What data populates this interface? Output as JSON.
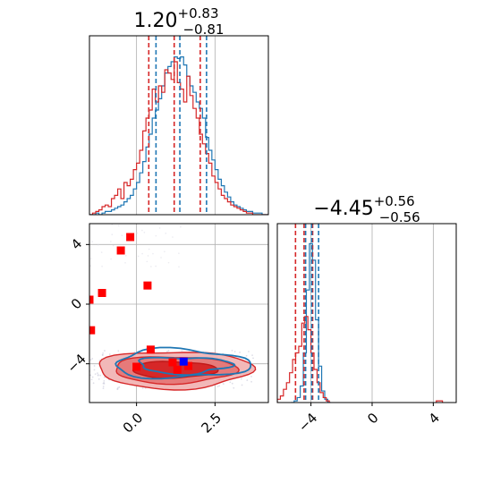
{
  "chart_data": [
    {
      "type": "histogram",
      "panel": "top-left",
      "title_main": "1.20",
      "title_sup": "+0.83",
      "title_sub": "−0.81",
      "xlim": [
        -1.5,
        4.2
      ],
      "grid": true,
      "quantiles_red": [
        0.39,
        1.2,
        2.03
      ],
      "quantiles_blue": [
        0.62,
        1.38,
        2.23
      ],
      "series": [
        {
          "color": "#1f77b4",
          "bin_centers": [
            -1.45,
            -1.35,
            -1.25,
            -1.15,
            -1.05,
            -0.95,
            -0.85,
            -0.75,
            -0.65,
            -0.55,
            -0.45,
            -0.35,
            -0.25,
            -0.15,
            -0.05,
            0.05,
            0.15,
            0.25,
            0.35,
            0.45,
            0.55,
            0.65,
            0.75,
            0.85,
            0.95,
            1.05,
            1.15,
            1.25,
            1.35,
            1.45,
            1.55,
            1.65,
            1.75,
            1.85,
            1.95,
            2.05,
            2.15,
            2.25,
            2.35,
            2.45,
            2.55,
            2.65,
            2.75,
            2.85,
            2.95,
            3.05,
            3.15,
            3.25,
            3.35,
            3.45,
            3.55,
            3.65,
            3.75,
            3.85,
            3.95,
            4.05,
            4.15
          ],
          "heights": [
            0.0,
            0.0,
            0.01,
            0.0,
            0.01,
            0.02,
            0.02,
            0.03,
            0.04,
            0.05,
            0.06,
            0.08,
            0.1,
            0.12,
            0.16,
            0.2,
            0.26,
            0.33,
            0.42,
            0.5,
            0.6,
            0.65,
            0.72,
            0.8,
            0.88,
            0.92,
            0.95,
            0.98,
            0.97,
            0.98,
            0.93,
            0.86,
            0.8,
            0.76,
            0.7,
            0.66,
            0.6,
            0.48,
            0.4,
            0.34,
            0.28,
            0.22,
            0.18,
            0.14,
            0.11,
            0.08,
            0.06,
            0.05,
            0.04,
            0.03,
            0.02,
            0.02,
            0.01,
            0.01,
            0.01,
            0.0,
            0.0
          ]
        },
        {
          "color": "#d62728",
          "bin_centers": [
            -1.45,
            -1.35,
            -1.25,
            -1.15,
            -1.05,
            -0.95,
            -0.85,
            -0.75,
            -0.65,
            -0.55,
            -0.45,
            -0.35,
            -0.25,
            -0.15,
            -0.05,
            0.05,
            0.15,
            0.25,
            0.35,
            0.45,
            0.55,
            0.65,
            0.75,
            0.85,
            0.95,
            1.05,
            1.15,
            1.25,
            1.35,
            1.45,
            1.55,
            1.65,
            1.75,
            1.85,
            1.95,
            2.05,
            2.15,
            2.25,
            2.35,
            2.45,
            2.55,
            2.65,
            2.75,
            2.85,
            2.95,
            3.05,
            3.15,
            3.25,
            3.35,
            3.45,
            3.55,
            3.65,
            3.75,
            3.85,
            3.95,
            4.05,
            4.15
          ],
          "heights": [
            0.0,
            0.01,
            0.02,
            0.03,
            0.05,
            0.06,
            0.05,
            0.1,
            0.12,
            0.16,
            0.1,
            0.2,
            0.18,
            0.22,
            0.28,
            0.32,
            0.4,
            0.52,
            0.6,
            0.65,
            0.78,
            0.7,
            0.8,
            0.76,
            0.9,
            0.88,
            0.84,
            0.95,
            0.82,
            0.78,
            0.7,
            0.86,
            0.74,
            0.66,
            0.6,
            0.5,
            0.44,
            0.38,
            0.32,
            0.24,
            0.2,
            0.16,
            0.12,
            0.1,
            0.08,
            0.06,
            0.05,
            0.04,
            0.03,
            0.02,
            0.01,
            0.01,
            0.0,
            0.0,
            0.0,
            0.0,
            0.0
          ]
        }
      ]
    },
    {
      "type": "contour-scatter",
      "panel": "bottom-left",
      "xlim": [
        -1.5,
        4.2
      ],
      "ylim": [
        -6.6,
        5.4
      ],
      "x_ticks": [
        "0.0",
        "2.5"
      ],
      "x_tick_values": [
        0.0,
        2.5
      ],
      "y_ticks": [
        "−4",
        "0",
        "4"
      ],
      "y_tick_values": [
        -4,
        0,
        4
      ],
      "grid": true,
      "red_markers": [
        [
          -0.2,
          4.5
        ],
        [
          -0.5,
          3.6
        ],
        [
          0.35,
          1.25
        ],
        [
          -1.1,
          0.75
        ],
        [
          -1.5,
          0.3
        ],
        [
          -1.45,
          -1.75
        ],
        [
          0.45,
          -3.05
        ],
        [
          0.0,
          -4.2
        ],
        [
          1.3,
          -4.4
        ],
        [
          1.65,
          -4.15
        ],
        [
          1.15,
          -3.9
        ]
      ],
      "blue_marker": [
        1.5,
        -3.85
      ],
      "contour_center_red": [
        1.2,
        -4.4
      ],
      "contour_center_blue": [
        1.4,
        -4.0
      ]
    },
    {
      "type": "histogram",
      "panel": "bottom-right",
      "title_main": "−4.45",
      "title_sup": "+0.56",
      "title_sub": "−0.56",
      "xlim": [
        -6.2,
        5.5
      ],
      "x_ticks": [
        "−4",
        "0",
        "4"
      ],
      "x_tick_values": [
        -4,
        0,
        4
      ],
      "grid": true,
      "quantiles_red": [
        -5.01,
        -4.45,
        -3.89
      ],
      "quantiles_blue": [
        -4.35,
        -3.95,
        -3.5
      ],
      "series": [
        {
          "color": "#1f77b4",
          "bin_centers": [
            -5.2,
            -5.0,
            -4.8,
            -4.6,
            -4.4,
            -4.2,
            -4.0,
            -3.8,
            -3.6,
            -3.4,
            -3.2,
            -3.0,
            -2.8
          ],
          "heights": [
            0.0,
            0.01,
            0.03,
            0.1,
            0.3,
            0.68,
            0.96,
            0.86,
            0.5,
            0.22,
            0.07,
            0.02,
            0.0
          ]
        },
        {
          "color": "#d62728",
          "bin_centers": [
            -6.1,
            -5.9,
            -5.7,
            -5.5,
            -5.3,
            -5.1,
            -4.9,
            -4.7,
            -4.5,
            -4.3,
            -4.1,
            -3.9,
            -3.7,
            -3.5,
            -3.3,
            -3.1,
            -2.9,
            4.3,
            4.5
          ],
          "heights": [
            0.02,
            0.04,
            0.08,
            0.12,
            0.18,
            0.26,
            0.3,
            0.34,
            0.48,
            0.52,
            0.44,
            0.3,
            0.2,
            0.12,
            0.06,
            0.03,
            0.01,
            0.01,
            0.01
          ]
        }
      ]
    }
  ]
}
